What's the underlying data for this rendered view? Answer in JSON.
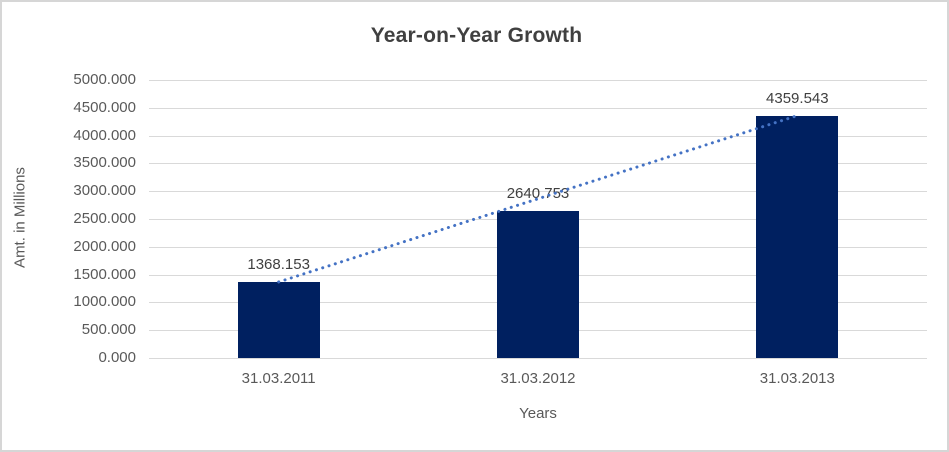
{
  "title": "Year-on-Year Growth",
  "axes": {
    "y_label": "Amt. in Millions",
    "x_label": "Years"
  },
  "colors": {
    "bar": "#002060",
    "trendline": "#4472C4",
    "gridline": "#D9D9D9",
    "title_text": "#404040",
    "axis_text": "#595959",
    "frame_border": "#D6D6D6",
    "background": "#FFFFFF"
  },
  "chart_data": {
    "type": "bar",
    "title": "Year-on-Year Growth",
    "xlabel": "Years",
    "ylabel": "Amt. in Millions",
    "categories": [
      "31.03.2011",
      "31.03.2012",
      "31.03.2013"
    ],
    "values": [
      1368.153,
      2640.753,
      4359.543
    ],
    "data_labels": [
      "1368.153",
      "2640.753",
      "4359.543"
    ],
    "ylim": [
      0,
      5000
    ],
    "ytick_step": 500,
    "ytick_labels": [
      "0.000",
      "500.000",
      "1000.000",
      "1500.000",
      "2000.000",
      "2500.000",
      "3000.000",
      "3500.000",
      "4000.000",
      "4500.000",
      "5000.000"
    ],
    "grid": true,
    "legend": "none",
    "trendline": {
      "style": "dotted",
      "from_category_index": 0,
      "to_category_index": 2
    }
  }
}
